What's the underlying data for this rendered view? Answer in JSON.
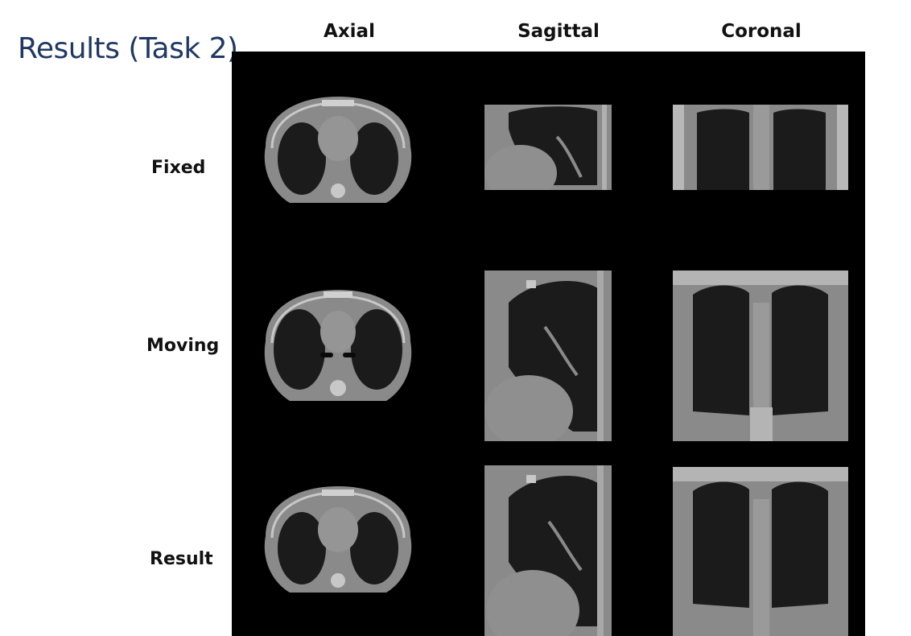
{
  "slide": {
    "title": "Results (Task 2)"
  },
  "columns": [
    "Axial",
    "Sagittal",
    "Coronal"
  ],
  "rows": [
    "Fixed",
    "Moving",
    "Result"
  ],
  "colors": {
    "title": "#1f3864",
    "panel_background": "#000000",
    "tissue": "#8a8a8a",
    "lung": "#1b1b1b"
  }
}
